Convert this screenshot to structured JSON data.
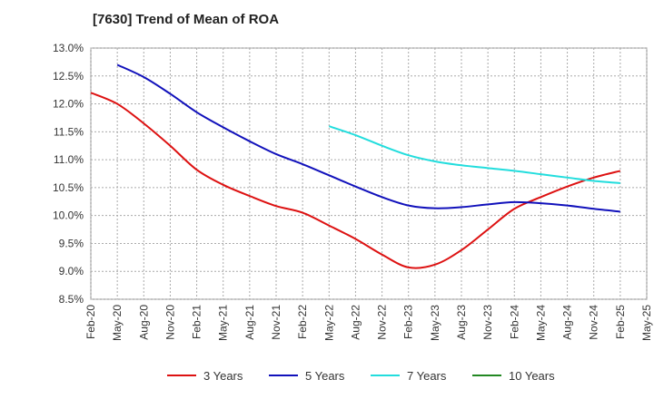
{
  "chart_data": {
    "type": "line",
    "title": "[7630]  Trend of Mean of ROA",
    "xlabel": "",
    "ylabel": "",
    "ylim": [
      8.5,
      13.0
    ],
    "y_ticks": [
      "8.5%",
      "9.0%",
      "9.5%",
      "10.0%",
      "10.5%",
      "11.0%",
      "11.5%",
      "12.0%",
      "12.5%",
      "13.0%"
    ],
    "categories": [
      "Feb-20",
      "May-20",
      "Aug-20",
      "Nov-20",
      "Feb-21",
      "May-21",
      "Aug-21",
      "Nov-21",
      "Feb-22",
      "May-22",
      "Aug-22",
      "Nov-22",
      "Feb-23",
      "May-23",
      "Aug-23",
      "Nov-23",
      "Feb-24",
      "May-24",
      "Aug-24",
      "Nov-24",
      "Feb-25",
      "May-25"
    ],
    "grid": true,
    "legend_position": "bottom",
    "series": [
      {
        "name": "3 Years",
        "color": "#dd1111",
        "values": [
          12.2,
          12.0,
          11.65,
          11.25,
          10.82,
          10.55,
          10.35,
          10.17,
          10.05,
          9.82,
          9.58,
          9.3,
          9.07,
          9.12,
          9.38,
          9.75,
          10.12,
          10.33,
          10.52,
          10.68,
          10.8,
          null
        ]
      },
      {
        "name": "5 Years",
        "color": "#1111bb",
        "values": [
          null,
          12.7,
          12.48,
          12.18,
          11.85,
          11.58,
          11.33,
          11.1,
          10.92,
          10.72,
          10.52,
          10.33,
          10.18,
          10.13,
          10.15,
          10.2,
          10.24,
          10.22,
          10.18,
          10.12,
          10.07,
          null
        ]
      },
      {
        "name": "7 Years",
        "color": "#22dddd",
        "values": [
          null,
          null,
          null,
          null,
          null,
          null,
          null,
          null,
          null,
          11.6,
          11.44,
          11.25,
          11.08,
          10.97,
          10.9,
          10.85,
          10.8,
          10.74,
          10.68,
          10.62,
          10.58,
          null
        ]
      },
      {
        "name": "10 Years",
        "color": "#228822",
        "values": [
          null,
          null,
          null,
          null,
          null,
          null,
          null,
          null,
          null,
          null,
          null,
          null,
          null,
          null,
          null,
          null,
          null,
          null,
          null,
          null,
          null,
          null
        ]
      }
    ]
  }
}
